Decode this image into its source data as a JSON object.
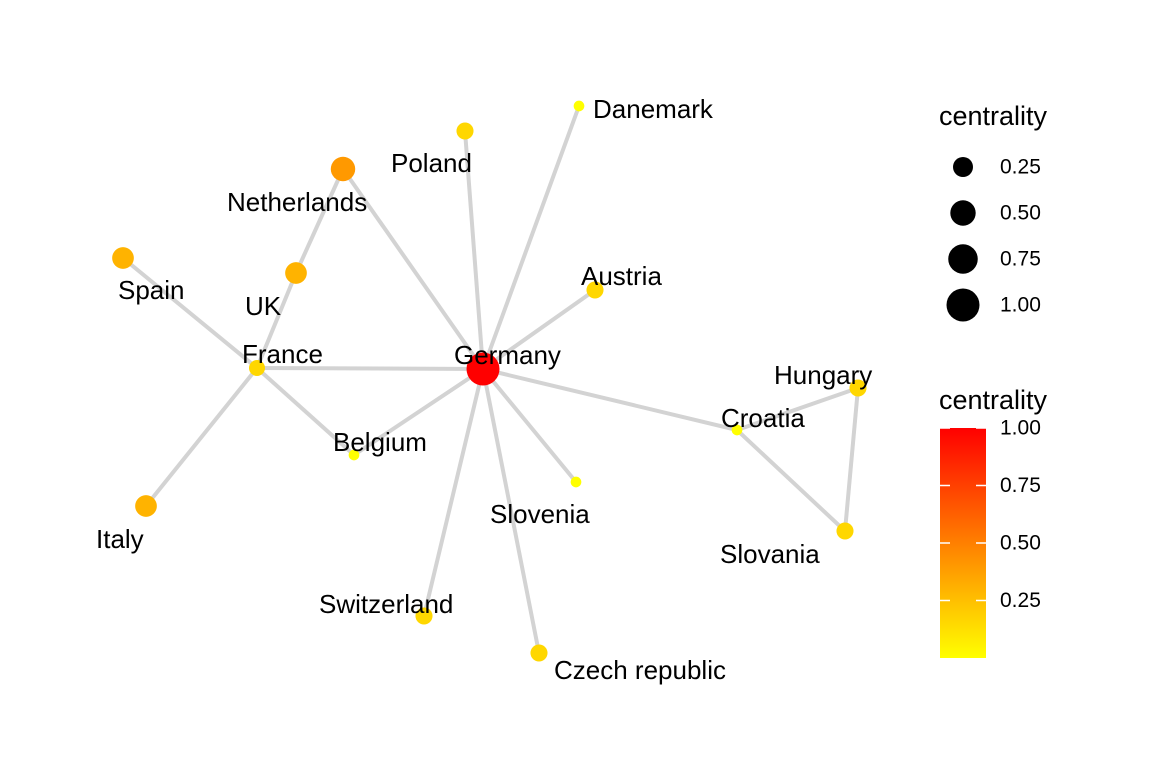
{
  "chart_data": {
    "type": "network",
    "nodes": [
      {
        "id": "Germany",
        "label": "Germany",
        "centrality": 1.0,
        "color": "#ff0000"
      },
      {
        "id": "France",
        "label": "France",
        "centrality": 0.12,
        "color": "#ffd700"
      },
      {
        "id": "Netherlands",
        "label": "Netherlands",
        "centrality": 0.45,
        "color": "#ff9900"
      },
      {
        "id": "Poland",
        "label": "Poland",
        "centrality": 0.15,
        "color": "#ffd700"
      },
      {
        "id": "Danemark",
        "label": "Danemark",
        "centrality": 0.02,
        "color": "#ffff00"
      },
      {
        "id": "Spain",
        "label": "Spain",
        "centrality": 0.32,
        "color": "#ffb300"
      },
      {
        "id": "UK",
        "label": "UK",
        "centrality": 0.32,
        "color": "#ffb300"
      },
      {
        "id": "Austria",
        "label": "Austria",
        "centrality": 0.15,
        "color": "#ffd700"
      },
      {
        "id": "Belgium",
        "label": "Belgium",
        "centrality": 0.02,
        "color": "#ffff00"
      },
      {
        "id": "Italy",
        "label": "Italy",
        "centrality": 0.32,
        "color": "#ffb300"
      },
      {
        "id": "Slovenia",
        "label": "Slovenia",
        "centrality": 0.02,
        "color": "#ffff00"
      },
      {
        "id": "Switzerland",
        "label": "Switzerland",
        "centrality": 0.15,
        "color": "#ffd700"
      },
      {
        "id": "Czech republic",
        "label": "Czech republic",
        "centrality": 0.15,
        "color": "#ffd700"
      },
      {
        "id": "Hungary",
        "label": "Hungary",
        "centrality": 0.15,
        "color": "#ffd700"
      },
      {
        "id": "Croatia",
        "label": "Croatia",
        "centrality": 0.02,
        "color": "#ffff00"
      },
      {
        "id": "Slovania",
        "label": "Slovania",
        "centrality": 0.15,
        "color": "#ffd700"
      }
    ],
    "edges": [
      [
        "Germany",
        "France"
      ],
      [
        "Germany",
        "Netherlands"
      ],
      [
        "Germany",
        "Poland"
      ],
      [
        "Germany",
        "Danemark"
      ],
      [
        "Germany",
        "Austria"
      ],
      [
        "Germany",
        "Belgium"
      ],
      [
        "Germany",
        "Slovenia"
      ],
      [
        "Germany",
        "Switzerland"
      ],
      [
        "Germany",
        "Czech republic"
      ],
      [
        "Germany",
        "Croatia"
      ],
      [
        "France",
        "Spain"
      ],
      [
        "France",
        "UK"
      ],
      [
        "France",
        "Italy"
      ],
      [
        "France",
        "Belgium"
      ],
      [
        "UK",
        "Netherlands"
      ],
      [
        "Croatia",
        "Hungary"
      ],
      [
        "Croatia",
        "Slovania"
      ],
      [
        "Hungary",
        "Slovania"
      ]
    ],
    "edge_color": "#d3d3d3",
    "legend_size": {
      "title": "centrality",
      "breaks": [
        0.25,
        0.5,
        0.75,
        1.0
      ],
      "labels": [
        "0.25",
        "0.50",
        "0.75",
        "1.00"
      ]
    },
    "legend_color": {
      "title": "centrality",
      "range": [
        0,
        1
      ],
      "breaks": [
        0.25,
        0.5,
        0.75,
        1.0
      ],
      "labels": [
        "0.25",
        "0.50",
        "0.75",
        "1.00"
      ],
      "low_color": "#ffff00",
      "high_color": "#ff0000"
    }
  }
}
